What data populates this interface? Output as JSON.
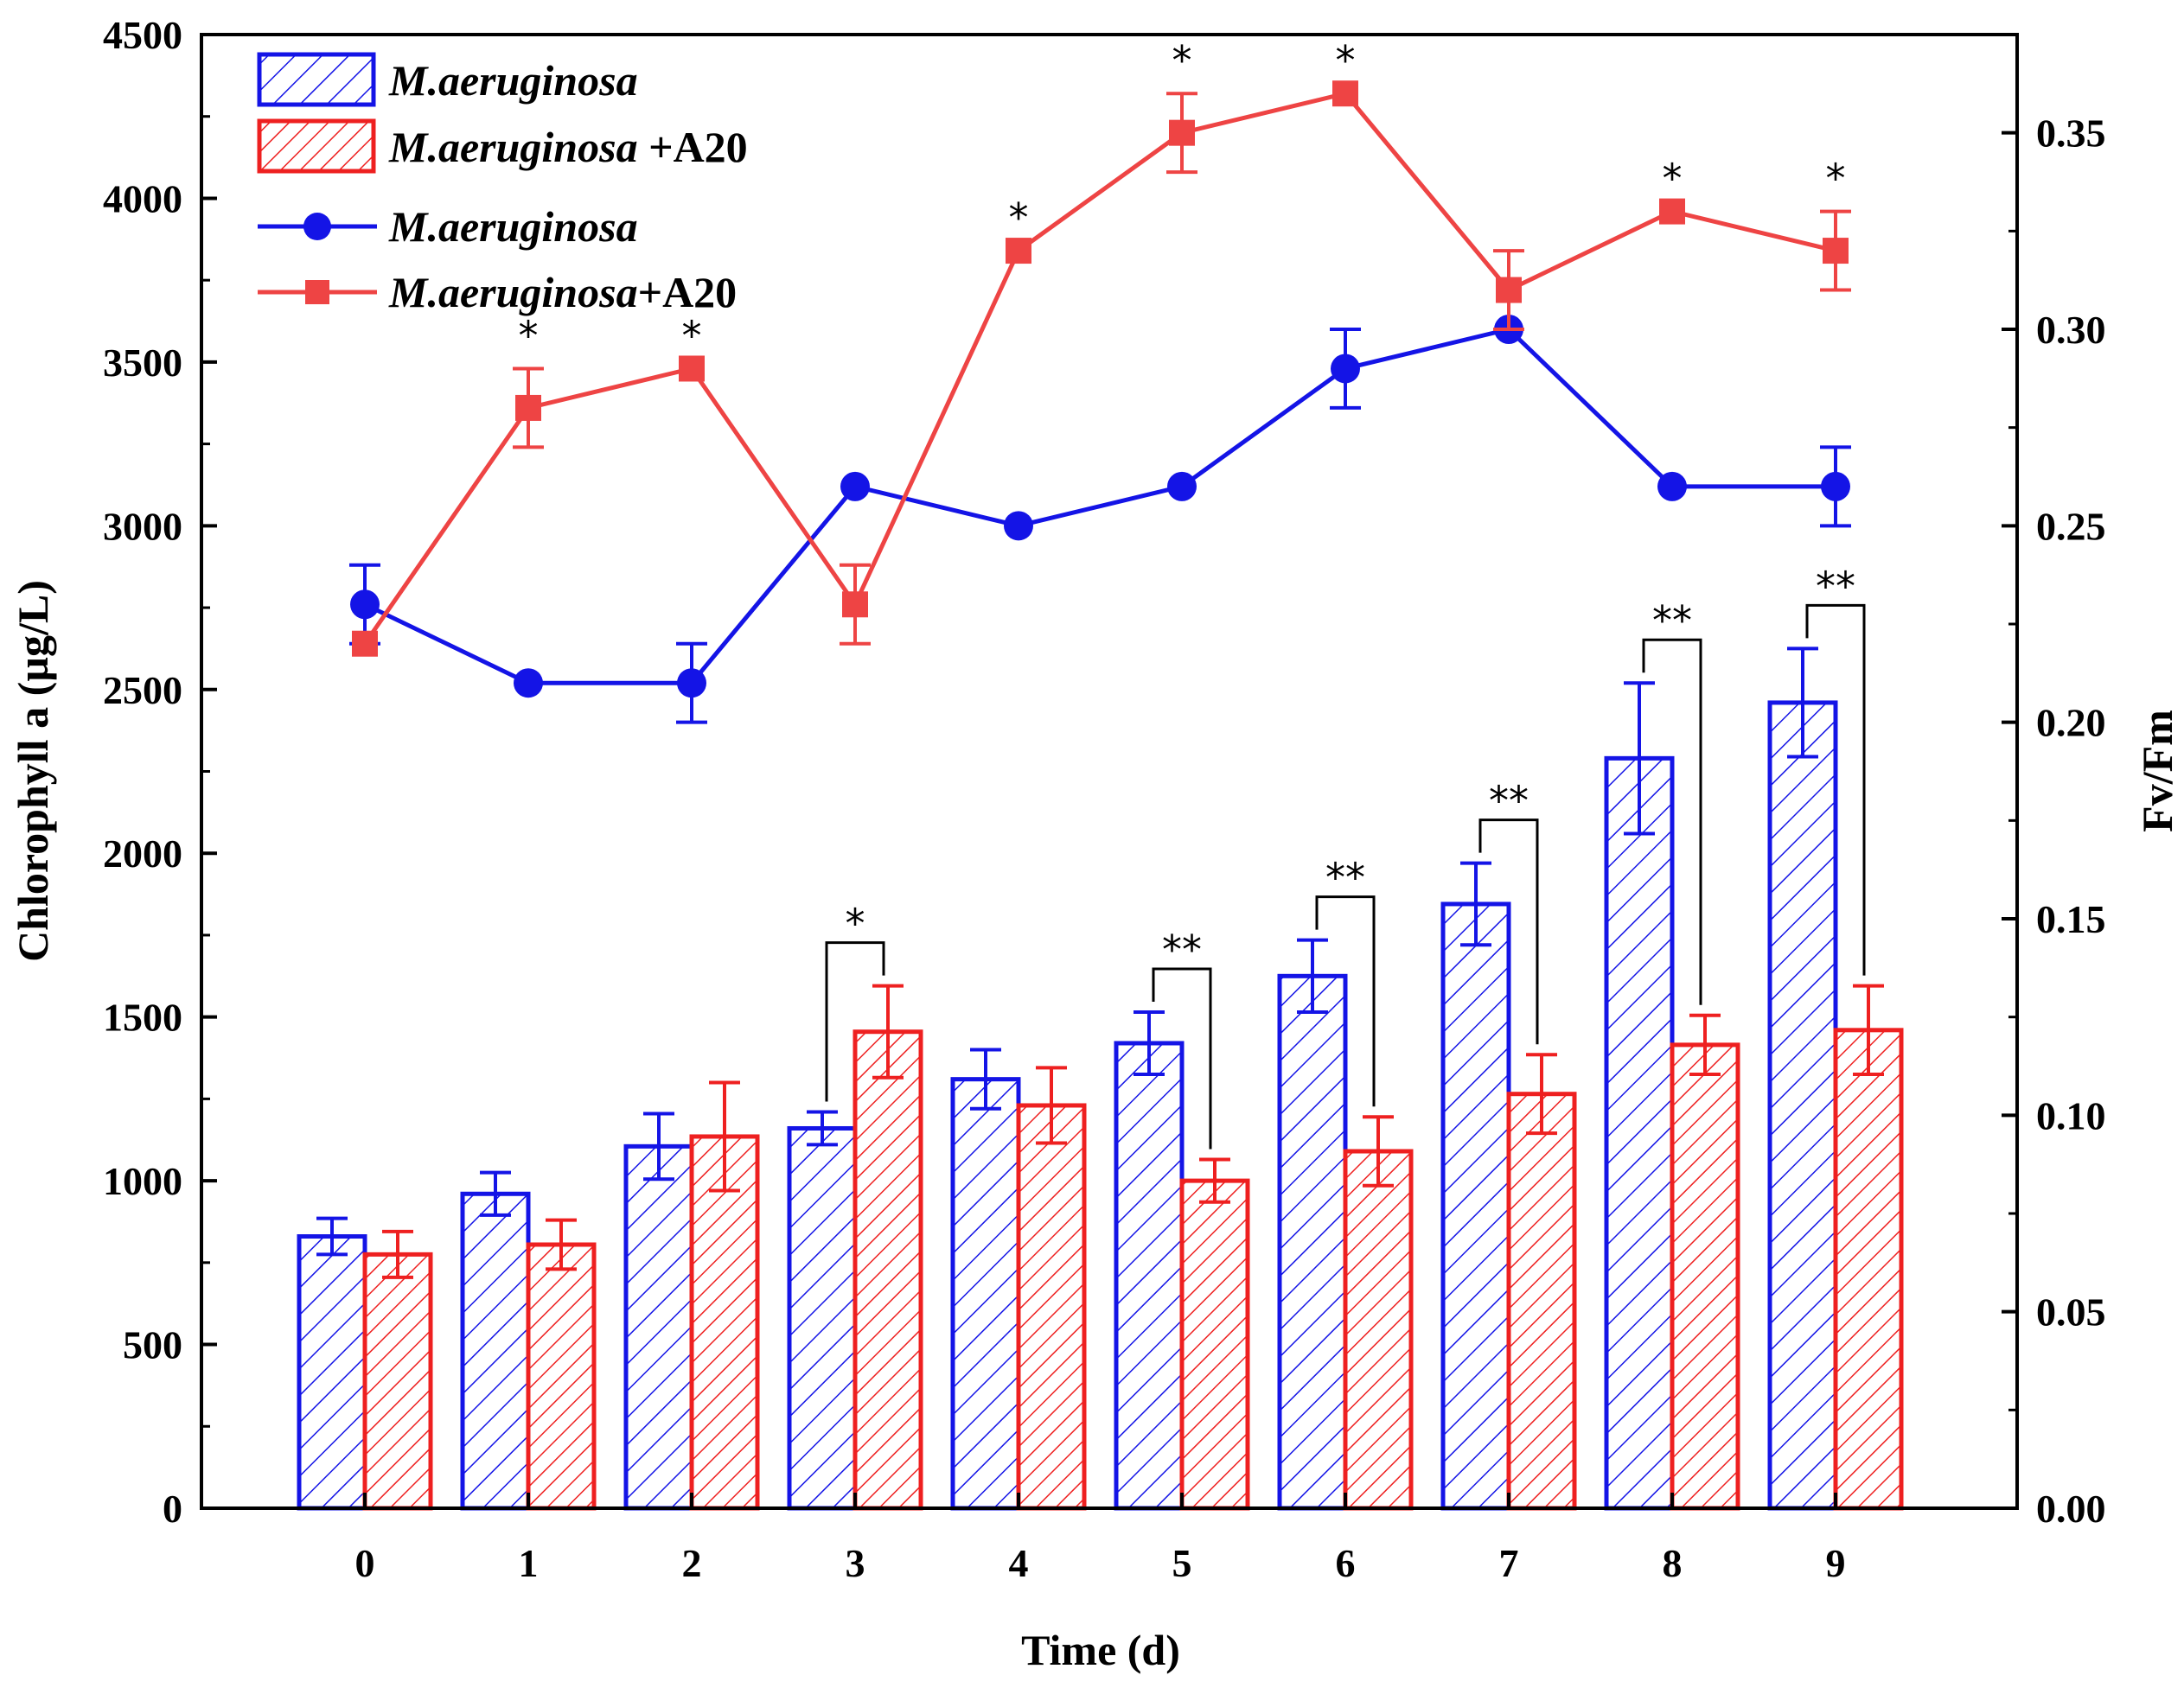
{
  "chart_data": {
    "type": "bar",
    "xlabel": "Time (d)",
    "ylabel": "Chlorophyll a (µg/L)",
    "y2label": "Fv/Fm",
    "categories": [
      "0",
      "1",
      "2",
      "3",
      "4",
      "5",
      "6",
      "7",
      "8",
      "9"
    ],
    "ylim": [
      0,
      4500
    ],
    "y2lim": [
      0,
      0.375
    ],
    "yticks": [
      "0",
      "500",
      "1000",
      "1500",
      "2000",
      "2500",
      "3000",
      "3500",
      "4000",
      "4500"
    ],
    "y2ticks": [
      "0.00",
      "0.05",
      "0.10",
      "0.15",
      "0.20",
      "0.25",
      "0.30",
      "0.35"
    ],
    "legend_position": "top-left",
    "grid": false,
    "colors": {
      "blue": "#1414e6",
      "red": "#ee2020",
      "red_line": "#ee4444"
    },
    "bar_series": [
      {
        "name_italic": "M.aeruginosa",
        "name_suffix": "",
        "color": "#1414e6",
        "values": [
          830,
          960,
          1105,
          1160,
          1310,
          1420,
          1625,
          1845,
          2290,
          2460
        ],
        "errors": [
          55,
          65,
          100,
          50,
          90,
          95,
          110,
          125,
          230,
          165
        ]
      },
      {
        "name_italic": "M.aeruginosa",
        "name_suffix": " +A20",
        "color": "#ee2020",
        "values": [
          775,
          805,
          1135,
          1455,
          1230,
          1000,
          1090,
          1265,
          1415,
          1460
        ],
        "errors": [
          70,
          75,
          165,
          140,
          115,
          65,
          105,
          120,
          90,
          135
        ]
      }
    ],
    "line_series": [
      {
        "name_italic": "M.aeruginosa",
        "name_suffix": "",
        "axis": "right",
        "marker": "circle",
        "color": "#1414e6",
        "values": [
          0.23,
          0.21,
          0.21,
          0.26,
          0.25,
          0.26,
          0.29,
          0.3,
          0.26,
          0.26
        ],
        "errors": [
          0.01,
          0,
          0.01,
          0,
          0,
          0,
          0.01,
          0,
          0,
          0.01
        ]
      },
      {
        "name_italic": "M.aeruginosa",
        "name_suffix": "+A20",
        "axis": "right",
        "marker": "square",
        "color": "#ee4444",
        "values": [
          0.22,
          0.28,
          0.29,
          0.23,
          0.32,
          0.35,
          0.36,
          0.31,
          0.33,
          0.32
        ],
        "errors": [
          0,
          0.01,
          0,
          0.01,
          0,
          0.01,
          0,
          0.01,
          0,
          0.01
        ]
      }
    ],
    "line_significance": [
      {
        "index": 1,
        "label": "*"
      },
      {
        "index": 2,
        "label": "*"
      },
      {
        "index": 4,
        "label": "*"
      },
      {
        "index": 5,
        "label": "*"
      },
      {
        "index": 6,
        "label": "*"
      },
      {
        "index": 8,
        "label": "*"
      },
      {
        "index": 9,
        "label": "*"
      }
    ],
    "bar_significance": [
      {
        "index": 3,
        "label": "*"
      },
      {
        "index": 5,
        "label": "**"
      },
      {
        "index": 6,
        "label": "**"
      },
      {
        "index": 7,
        "label": "**"
      },
      {
        "index": 8,
        "label": "**"
      },
      {
        "index": 9,
        "label": "**"
      }
    ]
  }
}
